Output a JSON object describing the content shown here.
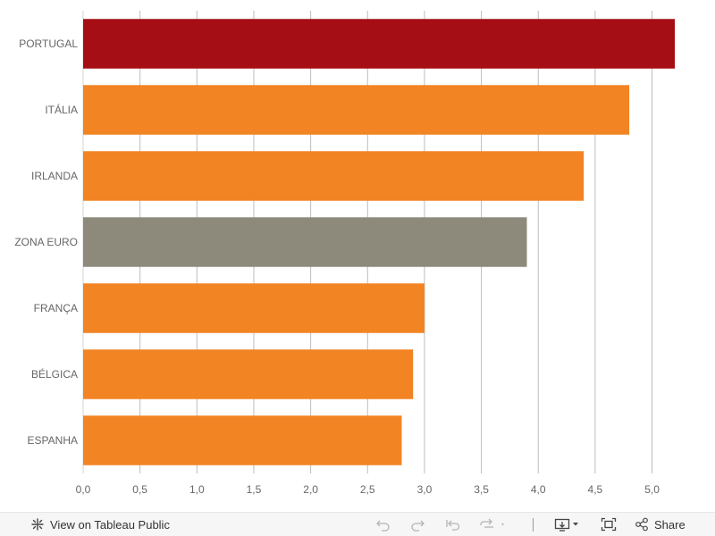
{
  "chart_data": {
    "type": "bar",
    "orientation": "horizontal",
    "categories": [
      "PORTUGAL",
      "ITÁLIA",
      "IRLANDA",
      "ZONA EURO",
      "FRANÇA",
      "BÉLGICA",
      "ESPANHA"
    ],
    "values": [
      5.2,
      4.8,
      4.4,
      3.9,
      3.0,
      2.9,
      2.8
    ],
    "bar_colors": [
      "#a50e15",
      "#f28423",
      "#f28423",
      "#8e8a7b",
      "#f28423",
      "#f28423",
      "#f28423"
    ],
    "xlim": [
      0,
      5.2
    ],
    "x_ticks": [
      0,
      0.5,
      1,
      1.5,
      2,
      2.5,
      3,
      3.5,
      4,
      4.5,
      5
    ],
    "x_tick_labels": [
      "0,0",
      "0,5",
      "1,0",
      "1,5",
      "2,0",
      "2,5",
      "3,0",
      "3,5",
      "4,0",
      "4,5",
      "5,0"
    ],
    "grid": true,
    "title": "",
    "xlabel": "",
    "ylabel": ""
  },
  "toolbar": {
    "view_label": "View on Tableau Public",
    "share_label": "Share",
    "icons": {
      "tableau": "tableau-logo-icon",
      "undo": "undo-icon",
      "redo": "redo-icon",
      "revert": "revert-icon",
      "refresh": "refresh-icon",
      "download": "download-icon",
      "fullscreen": "fullscreen-icon",
      "share": "share-icon"
    }
  }
}
